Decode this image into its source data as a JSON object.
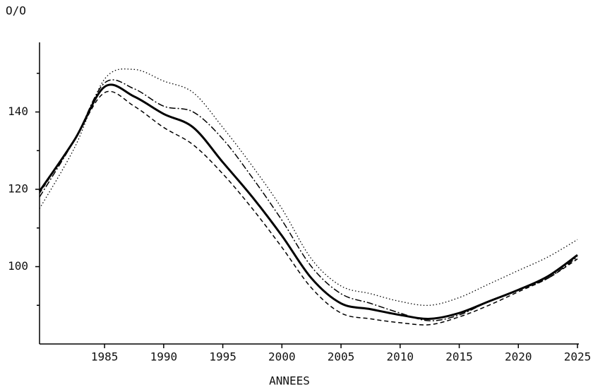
{
  "chart_data": {
    "type": "line",
    "y_label": "O/O",
    "x_label": "ANNEES",
    "x": [
      1979.5,
      1982.5,
      1985,
      1987.5,
      1990,
      1992.5,
      1995,
      1997.5,
      2000,
      2002.5,
      2005,
      2007.5,
      2010,
      2012.5,
      2015,
      2017.5,
      2020,
      2022.5,
      2025
    ],
    "series": [
      {
        "color": "#000000",
        "style": "solid",
        "values": [
          119.5,
          133,
          146.5,
          144,
          139.5,
          136,
          127,
          118,
          108,
          97,
          90.5,
          89,
          87.5,
          86.5,
          88,
          91,
          94,
          97.5,
          103
        ]
      },
      {
        "color": "#000000",
        "style": "dotted",
        "values": [
          115,
          131,
          148.5,
          151,
          148,
          145,
          136,
          126,
          115,
          102,
          95,
          93,
          91,
          90,
          92,
          95.5,
          99,
          102.5,
          107
        ]
      },
      {
        "color": "#000000",
        "style": "dashdot",
        "values": [
          118,
          133,
          147.5,
          146,
          141.5,
          140,
          133,
          123,
          112,
          100,
          93,
          90.5,
          88,
          86,
          87.5,
          91,
          94,
          97,
          102.5
        ]
      },
      {
        "color": "#000000",
        "style": "dashed",
        "values": [
          119,
          133,
          145,
          141.5,
          136,
          131.5,
          124,
          115,
          105,
          94.5,
          88,
          86.5,
          85.5,
          85,
          87,
          90,
          93.5,
          97,
          102
        ]
      }
    ],
    "xlim": [
      1979.5,
      2025
    ],
    "xticks": [
      1985,
      1990,
      1995,
      2000,
      2005,
      2010,
      2015,
      2020,
      2025
    ],
    "ylim": [
      80,
      158
    ],
    "yticks": [
      100,
      120,
      140
    ],
    "minor_yticks": [
      90,
      110,
      130,
      150
    ],
    "grid": false
  }
}
